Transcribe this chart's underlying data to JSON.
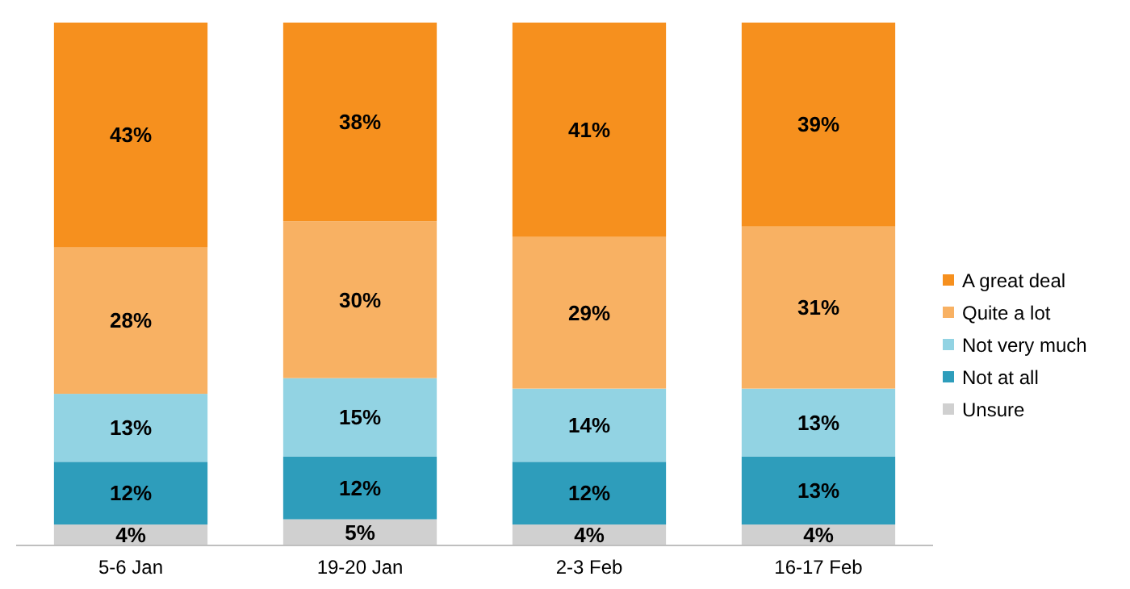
{
  "chart_data": {
    "type": "bar",
    "stacked": true,
    "categories": [
      "5-6 Jan",
      "19-20 Jan",
      "2-3 Feb",
      "16-17 Feb"
    ],
    "series": [
      {
        "name": "Unsure",
        "color": "#d0d0d0",
        "values": [
          4,
          5,
          4,
          4
        ],
        "value_labels": [
          "4%",
          "5%",
          "4%",
          "4%"
        ]
      },
      {
        "name": "Not at all",
        "color": "#2e9dbb",
        "values": [
          12,
          12,
          12,
          13
        ],
        "value_labels": [
          "12%",
          "12%",
          "12%",
          "13%"
        ]
      },
      {
        "name": "Not very much",
        "color": "#92d3e3",
        "values": [
          13,
          15,
          14,
          13
        ],
        "value_labels": [
          "13%",
          "15%",
          "14%",
          "13%"
        ]
      },
      {
        "name": "Quite a lot",
        "color": "#f8b163",
        "values": [
          28,
          30,
          29,
          31
        ],
        "value_labels": [
          "28%",
          "30%",
          "29%",
          "31%"
        ]
      },
      {
        "name": "A great deal",
        "color": "#f6901e",
        "values": [
          43,
          38,
          41,
          39
        ],
        "value_labels": [
          "43%",
          "38%",
          "41%",
          "39%"
        ]
      }
    ],
    "legend": "right"
  }
}
